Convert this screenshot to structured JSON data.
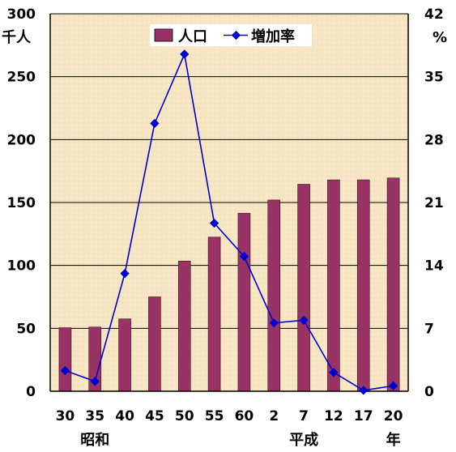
{
  "chart_data": {
    "type": "bar",
    "categories": [
      "30",
      "35",
      "40",
      "45",
      "50",
      "55",
      "60",
      "2",
      "7",
      "12",
      "17",
      "20"
    ],
    "era_labels": [
      {
        "text": "昭和",
        "category_index": 1
      },
      {
        "text": "平成",
        "category_index": 8
      },
      {
        "text": "年",
        "category_index": 11
      }
    ],
    "series": [
      {
        "name": "人口",
        "kind": "bar",
        "axis": "left",
        "color": "#993366",
        "values": [
          50.5,
          51,
          57.5,
          75,
          103.5,
          122.5,
          141.5,
          152,
          164.5,
          168,
          168,
          169.5
        ]
      },
      {
        "name": "増加率",
        "kind": "line",
        "axis": "right",
        "color": "#0000CC",
        "values": [
          2.3,
          1.1,
          13.1,
          29.8,
          37.5,
          18.7,
          15,
          7.6,
          7.9,
          2.1,
          0.1,
          0.6
        ]
      }
    ],
    "y_left": {
      "unit": "千人",
      "min": 0,
      "max": 300,
      "ticks": [
        0,
        50,
        100,
        150,
        200,
        250,
        300
      ]
    },
    "y_right": {
      "unit": "%",
      "min": 0,
      "max": 42,
      "ticks": [
        0,
        7,
        14,
        21,
        28,
        35,
        42
      ]
    },
    "grid": true,
    "legend": "top-center",
    "plot_background": "#F7E6C4"
  }
}
